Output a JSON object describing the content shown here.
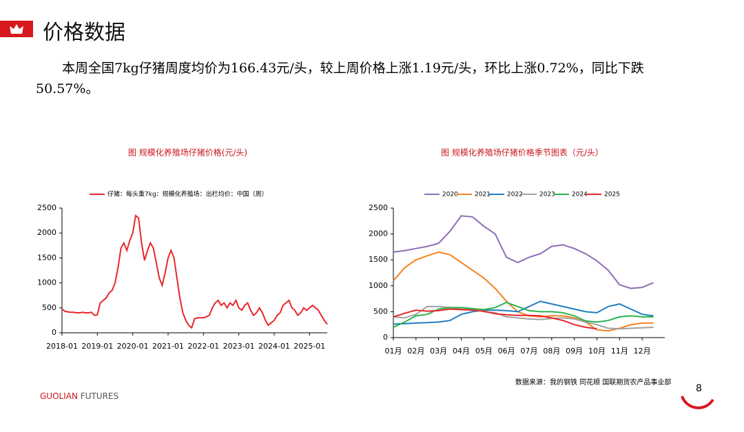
{
  "header": {
    "title": "价格数据"
  },
  "body": "本周全国7kg仔猪周度均价为166.43元/头，较上周价格上涨1.19元/头，环比上涨0.72%，同比下跌50.57%。",
  "source": "数据来源：我的钢铁  同花顺  国联期货农产品事业部",
  "brand": {
    "name": "GUOLIAN",
    "suffix": "FUTURES"
  },
  "page_number": "8",
  "chart_data": [
    {
      "type": "line",
      "title": "图   规模化养殖场仔猪价格(元/头)",
      "categories": [
        "2018-01",
        null,
        null,
        null,
        null,
        null,
        null,
        null,
        null,
        null,
        null,
        null,
        "2019-01",
        null,
        null,
        null,
        null,
        null,
        null,
        null,
        null,
        null,
        null,
        null,
        "2020-01",
        null,
        null,
        null,
        null,
        null,
        null,
        null,
        null,
        null,
        null,
        null,
        "2021-01",
        null,
        null,
        null,
        null,
        null,
        null,
        null,
        null,
        null,
        null,
        null,
        "2022-01",
        null,
        null,
        null,
        null,
        null,
        null,
        null,
        null,
        null,
        null,
        null,
        "2023-01",
        null,
        null,
        null,
        null,
        null,
        null,
        null,
        null,
        null,
        null,
        null,
        "2024-01",
        null,
        null,
        null,
        null,
        null,
        null,
        null,
        null,
        null,
        null,
        null,
        "2025-01",
        null,
        null,
        null,
        null,
        null,
        null
      ],
      "series": [
        {
          "name": "仔猪：每头重7kg：规模化养殖场：出栏均价：中国（周）",
          "color": "#e8262a",
          "values": [
            480,
            430,
            420,
            410,
            410,
            400,
            400,
            410,
            400,
            400,
            410,
            350,
            360,
            600,
            650,
            700,
            800,
            850,
            1000,
            1300,
            1700,
            1800,
            1650,
            1850,
            2000,
            2350,
            2300,
            1800,
            1450,
            1650,
            1800,
            1700,
            1400,
            1100,
            950,
            1200,
            1500,
            1650,
            1500,
            1100,
            700,
            400,
            250,
            150,
            100,
            280,
            300,
            300,
            300,
            320,
            350,
            500,
            600,
            650,
            550,
            600,
            500,
            600,
            550,
            650,
            500,
            450,
            550,
            600,
            450,
            350,
            400,
            500,
            400,
            250,
            150,
            200,
            250,
            350,
            400,
            550,
            600,
            650,
            500,
            450,
            350,
            400,
            500,
            450,
            500,
            550,
            500,
            450,
            350,
            250,
            170
          ]
        }
      ],
      "ylim": [
        0,
        2500
      ],
      "yticks": [
        0,
        500,
        1000,
        1500,
        2000,
        2500
      ],
      "grid": false,
      "legend": "top"
    },
    {
      "type": "line",
      "title": "图  规模化养殖场仔猪价格季节图表（元/头）",
      "categories": [
        "01月",
        null,
        "02月",
        null,
        "03月",
        null,
        "04月",
        null,
        "05月",
        null,
        "06月",
        null,
        "07月",
        null,
        "08月",
        null,
        "09月",
        null,
        "10月",
        null,
        "11月",
        null,
        "12月",
        null
      ],
      "series": [
        {
          "name": "2020",
          "color": "#8e6bb8",
          "values": [
            1650,
            1680,
            1720,
            1760,
            1820,
            2050,
            2350,
            2330,
            2150,
            2000,
            1550,
            1450,
            1550,
            1620,
            1760,
            1790,
            1720,
            1620,
            1480,
            1300,
            1020,
            950,
            970,
            1060
          ]
        },
        {
          "name": "2021",
          "color": "#f58220",
          "values": [
            1100,
            1350,
            1500,
            1580,
            1650,
            1600,
            1450,
            1300,
            1150,
            950,
            700,
            500,
            420,
            400,
            420,
            420,
            380,
            300,
            150,
            130,
            180,
            250,
            280,
            280
          ]
        },
        {
          "name": "2022",
          "color": "#1f7cc1",
          "values": [
            260,
            270,
            280,
            290,
            300,
            330,
            450,
            500,
            530,
            530,
            520,
            500,
            600,
            700,
            650,
            600,
            550,
            500,
            480,
            600,
            650,
            550,
            450,
            420
          ]
        },
        {
          "name": "2023",
          "color": "#a0a0a0",
          "values": [
            400,
            380,
            450,
            600,
            600,
            580,
            550,
            550,
            500,
            480,
            400,
            380,
            360,
            350,
            370,
            380,
            360,
            300,
            250,
            180,
            170,
            180,
            190,
            200
          ]
        },
        {
          "name": "2024",
          "color": "#2bb24c",
          "values": [
            200,
            300,
            420,
            450,
            550,
            580,
            580,
            560,
            540,
            580,
            680,
            600,
            520,
            500,
            500,
            480,
            420,
            320,
            300,
            330,
            400,
            420,
            400,
            400
          ]
        },
        {
          "name": "2025",
          "color": "#e8262a",
          "values": [
            400,
            470,
            530,
            510,
            520,
            550,
            540,
            530,
            510,
            460,
            440,
            430,
            430,
            420,
            380,
            330,
            250,
            200,
            170,
            null,
            null,
            null,
            null,
            null
          ]
        }
      ],
      "ylim": [
        0,
        2500
      ],
      "yticks": [
        0,
        500,
        1000,
        1500,
        2000,
        2500
      ],
      "grid": false,
      "legend": "top"
    }
  ]
}
